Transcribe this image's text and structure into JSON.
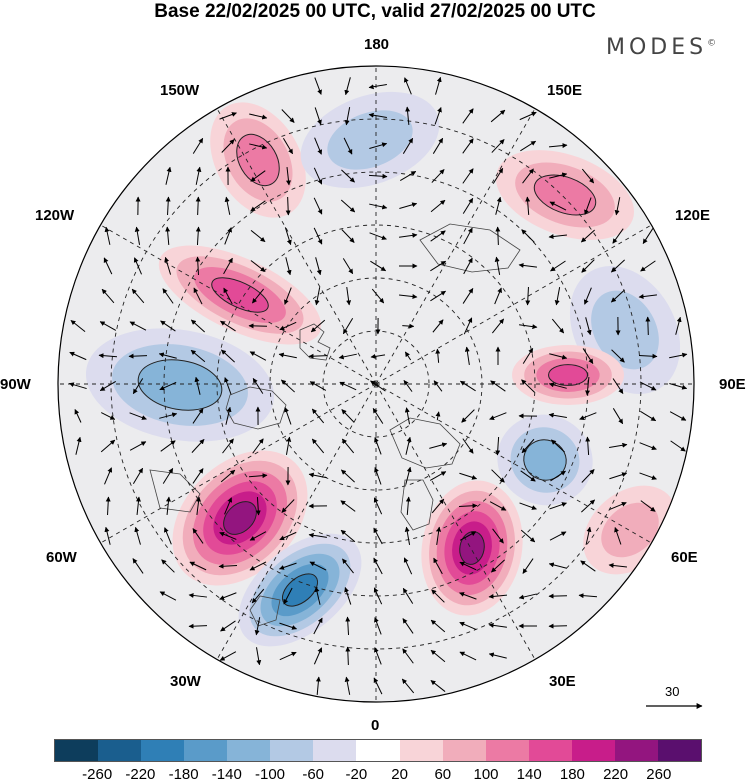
{
  "title": "Base 22/02/2025 00 UTC, valid 27/02/2025 00 UTC",
  "brand": {
    "name": "MODES",
    "mark": "©"
  },
  "longitude_labels": {
    "lon_180": "180",
    "lon_150e": "150E",
    "lon_120e": "120E",
    "lon_90e": "90E",
    "lon_60e": "60E",
    "lon_30e": "30E",
    "lon_0": "0",
    "lon_30w": "30W",
    "lon_60w": "60W",
    "lon_90w": "90W",
    "lon_120w": "120W",
    "lon_150w": "150W"
  },
  "reference_vector": {
    "label": "30"
  },
  "colorbar": {
    "colors": [
      "#0d3d5c",
      "#1a5e8e",
      "#2f7fb6",
      "#5a9bc9",
      "#86b4d8",
      "#b3c9e4",
      "#dcdcee",
      "#ffffff",
      "#f8d4d8",
      "#f1adbb",
      "#ec7aa4",
      "#e24a97",
      "#c81d8a",
      "#93157f",
      "#5a0f6e"
    ],
    "ticks": [
      "-260",
      "-220",
      "-180",
      "-140",
      "-100",
      "-60",
      "-20",
      "20",
      "60",
      "100",
      "140",
      "180",
      "220",
      "260"
    ]
  },
  "anomalies": [
    {
      "id": "pacific-north-positive",
      "sign": "positive",
      "level": 100
    },
    {
      "id": "north-pacific-negative",
      "sign": "negative",
      "level": 60
    },
    {
      "id": "east-siberia-positive",
      "sign": "positive",
      "level": 100
    },
    {
      "id": "alaska-canada-positive",
      "sign": "positive",
      "level": 140
    },
    {
      "id": "central-canada-negative",
      "sign": "negative",
      "level": 100
    },
    {
      "id": "east-siberia-east-negative",
      "sign": "negative",
      "level": 60
    },
    {
      "id": "west-siberia-positive",
      "sign": "positive",
      "level": 140
    },
    {
      "id": "ural-negative",
      "sign": "negative",
      "level": 100
    },
    {
      "id": "north-atlantic-positive",
      "sign": "positive",
      "level": 220
    },
    {
      "id": "iceland-negative",
      "sign": "negative",
      "level": 180
    },
    {
      "id": "scandinavia-positive",
      "sign": "positive",
      "level": 220
    },
    {
      "id": "central-asia-positive",
      "sign": "positive",
      "level": 60
    }
  ]
}
